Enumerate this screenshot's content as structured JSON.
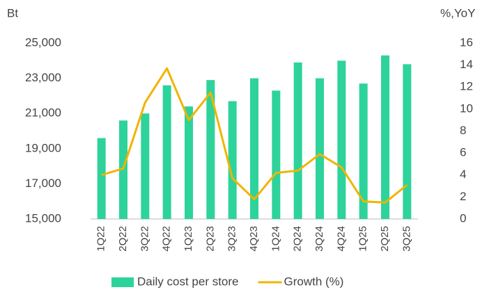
{
  "chart_data": {
    "type": "bar-line",
    "y_label": "Bt",
    "y2_label": "%,YoY",
    "categories": [
      "1Q22",
      "2Q22",
      "3Q22",
      "4Q22",
      "1Q23",
      "2Q23",
      "3Q23",
      "4Q23",
      "1Q24",
      "2Q24",
      "3Q24",
      "4Q24",
      "1Q25",
      "2Q25",
      "3Q25"
    ],
    "series": [
      {
        "name": "Daily cost per store",
        "type": "bar",
        "color": "#2dd39b",
        "axis": "y",
        "values": [
          19600,
          20600,
          21000,
          22600,
          21400,
          22900,
          21700,
          23000,
          22300,
          23900,
          23000,
          24000,
          22700,
          24300,
          23800
        ]
      },
      {
        "name": "Growth (%)",
        "type": "line",
        "color": "#f0b400",
        "axis": "y2",
        "values": [
          4.0,
          4.6,
          10.6,
          13.7,
          9.0,
          11.5,
          3.7,
          1.8,
          4.2,
          4.4,
          5.9,
          4.7,
          1.6,
          1.5,
          3.1
        ]
      }
    ],
    "ylim": [
      15000,
      25000
    ],
    "yticks": [
      {
        "value": 15000,
        "label": "15,000"
      },
      {
        "value": 17000,
        "label": "17,000"
      },
      {
        "value": 19000,
        "label": "19,000"
      },
      {
        "value": 21000,
        "label": "21,000"
      },
      {
        "value": 23000,
        "label": "23,000"
      },
      {
        "value": 25000,
        "label": "25,000"
      }
    ],
    "y2lim": [
      0,
      16
    ],
    "y2ticks": [
      0,
      2,
      4,
      6,
      8,
      10,
      12,
      14,
      16
    ],
    "grid": false,
    "legend": "bottom"
  }
}
